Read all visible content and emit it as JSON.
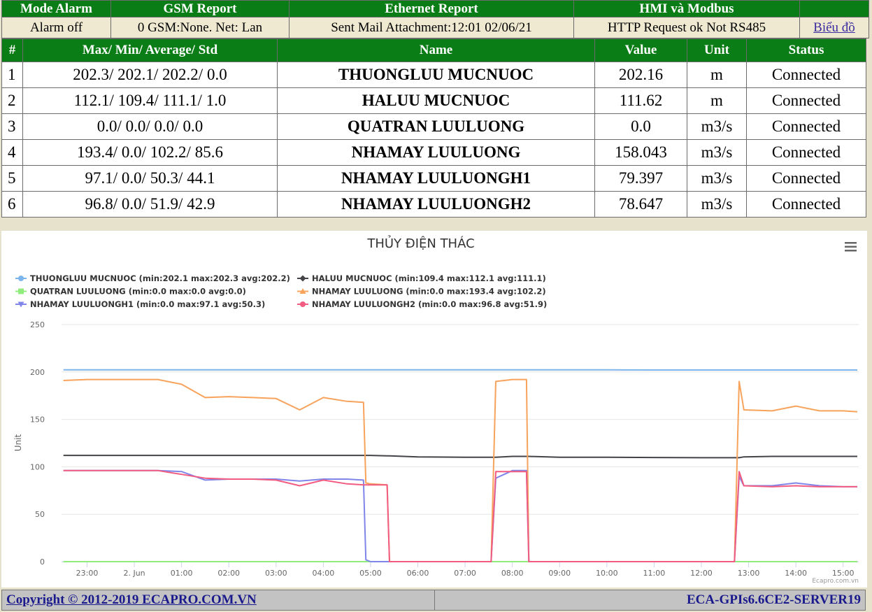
{
  "status": {
    "headers": [
      "Mode Alarm",
      "GSM Report",
      "Ethernet Report",
      "HMI và Modbus"
    ],
    "values": [
      "Alarm off",
      "0 GSM:None. Net: Lan",
      "Sent Mail Attachment:12:01 02/06/21",
      "HTTP Request ok Not RS485"
    ],
    "link": "Biểu đồ"
  },
  "table": {
    "header": [
      "#",
      "Max/ Min/ Average/ Std",
      "Name",
      "Value",
      "Unit",
      "Status"
    ],
    "rows": [
      [
        "1",
        "202.3/ 202.1/ 202.2/ 0.0",
        "THUONGLUU MUCNUOC",
        "202.16",
        "m",
        "Connected"
      ],
      [
        "2",
        "112.1/ 109.4/ 111.1/ 1.0",
        "HALUU MUCNUOC",
        "111.62",
        "m",
        "Connected"
      ],
      [
        "3",
        "0.0/ 0.0/ 0.0/ 0.0",
        "QUATRAN LUULUONG",
        "0.0",
        "m3/s",
        "Connected"
      ],
      [
        "4",
        "193.4/ 0.0/ 102.2/ 85.6",
        "NHAMAY LUULUONG",
        "158.043",
        "m3/s",
        "Connected"
      ],
      [
        "5",
        "97.1/ 0.0/ 50.3/ 44.1",
        "NHAMAY LUULUONGH1",
        "79.397",
        "m3/s",
        "Connected"
      ],
      [
        "6",
        "96.8/ 0.0/ 51.9/ 42.9",
        "NHAMAY LUULUONGH2",
        "78.647",
        "m3/s",
        "Connected"
      ]
    ]
  },
  "chart_data": {
    "type": "line",
    "title": "THỦY ĐIỆN THÁC",
    "y_label": "Unit",
    "credit": "Ecapro.com.vn",
    "x": [
      -1.5,
      -1,
      -0.5,
      0,
      0.5,
      1,
      1.5,
      2,
      2.5,
      3,
      3.5,
      4,
      4.5,
      4.85,
      4.9,
      5,
      5.35,
      5.4,
      6,
      7,
      7.55,
      7.65,
      8,
      8.3,
      8.35,
      9,
      10,
      11,
      12,
      12.7,
      12.8,
      12.9,
      13.5,
      14,
      14.5,
      15,
      15.3
    ],
    "xlim": [
      -1.54,
      15.33
    ],
    "xticks": [
      {
        "value": -1,
        "label": "23:00"
      },
      {
        "value": 0,
        "label": "2. Jun"
      },
      {
        "value": 1,
        "label": "01:00"
      },
      {
        "value": 2,
        "label": "02:00"
      },
      {
        "value": 3,
        "label": "03:00"
      },
      {
        "value": 4,
        "label": "04:00"
      },
      {
        "value": 5,
        "label": "05:00"
      },
      {
        "value": 6,
        "label": "06:00"
      },
      {
        "value": 7,
        "label": "07:00"
      },
      {
        "value": 8,
        "label": "08:00"
      },
      {
        "value": 9,
        "label": "09:00"
      },
      {
        "value": 10,
        "label": "10:00"
      },
      {
        "value": 11,
        "label": "11:00"
      },
      {
        "value": 12,
        "label": "12:00"
      },
      {
        "value": 13,
        "label": "13:00"
      },
      {
        "value": 14,
        "label": "14:00"
      },
      {
        "value": 15,
        "label": "15:00"
      }
    ],
    "ylim": [
      0,
      250
    ],
    "yticks": [
      0,
      50,
      100,
      150,
      200,
      250
    ],
    "grid": true,
    "series": [
      {
        "name": "THUONGLUU MUCNUOC (min:202.1 max:202.3 avg:202.2)",
        "color": "#7cb5ec",
        "marker": "circle",
        "values": [
          202.3,
          202.3,
          202.3,
          202.3,
          202.3,
          202.3,
          202.3,
          202.3,
          202.3,
          202.3,
          202.3,
          202.2,
          202.2,
          202.2,
          202.2,
          202.2,
          202.2,
          202.2,
          202.2,
          202.2,
          202.2,
          202.2,
          202.2,
          202.2,
          202.2,
          202.2,
          202.2,
          202.1,
          202.1,
          202.1,
          202.1,
          202.1,
          202.1,
          202.1,
          202.1,
          202.1,
          202.1
        ]
      },
      {
        "name": "HALUU MUCNUOC (min:109.4 max:112.1 avg:111.1)",
        "color": "#434348",
        "marker": "diamond",
        "values": [
          112,
          112,
          112,
          112,
          112,
          112,
          112,
          112,
          112,
          112,
          112,
          112,
          112,
          112,
          112,
          112,
          111.5,
          111.5,
          110.5,
          110,
          110,
          110,
          111,
          111,
          111,
          110,
          110,
          109.8,
          109.6,
          109.6,
          109.6,
          110.5,
          111,
          111,
          111,
          111,
          111
        ]
      },
      {
        "name": "QUATRAN LUULUONG (min:0.0 max:0.0 avg:0.0)",
        "color": "#90ed7d",
        "marker": "square",
        "values": [
          0,
          0,
          0,
          0,
          0,
          0,
          0,
          0,
          0,
          0,
          0,
          0,
          0,
          0,
          0,
          0,
          0,
          0,
          0,
          0,
          0,
          0,
          0,
          0,
          0,
          0,
          0,
          0,
          0,
          0,
          0,
          0,
          0,
          0,
          0,
          0,
          0
        ]
      },
      {
        "name": "NHAMAY LUULUONG (min:0.0 max:193.4 avg:102.2)",
        "color": "#f7a35c",
        "marker": "triangle",
        "values": [
          191,
          192,
          192,
          192,
          192,
          187,
          173,
          174,
          173,
          172,
          160,
          173,
          169,
          168,
          83,
          82,
          81,
          0,
          0,
          0,
          0,
          190,
          192,
          192,
          0,
          0,
          0,
          0,
          0,
          0,
          190,
          160,
          159,
          164,
          159,
          159,
          158
        ]
      },
      {
        "name": "NHAMAY LUULUONGH1 (min:0.0 max:97.1 avg:50.3)",
        "color": "#8085e9",
        "marker": "triangle-down",
        "values": [
          96,
          96,
          96,
          96,
          96,
          95,
          86,
          87,
          87,
          87,
          85,
          87,
          87,
          86,
          2,
          0,
          0,
          0,
          0,
          0,
          0,
          88,
          96,
          96,
          0,
          0,
          0,
          0,
          0,
          0,
          90,
          80,
          80,
          83,
          80,
          79,
          79
        ]
      },
      {
        "name": "NHAMAY LUULUONGH2 (min:0.0 max:96.8 avg:51.9)",
        "color": "#f15c80",
        "marker": "circle",
        "values": [
          96,
          96,
          96,
          96,
          96,
          92,
          88,
          87,
          87,
          86,
          80,
          86,
          82,
          81,
          81,
          81,
          81,
          0,
          0,
          0,
          0,
          95,
          95,
          95,
          0,
          0,
          0,
          0,
          0,
          0,
          95,
          80,
          79,
          80,
          79,
          79,
          79
        ]
      }
    ]
  },
  "footer": {
    "copyright": "Copyright © 2012-2019 ECAPRO.COM.VN",
    "server": "ECA-GPIs6.6CE2-SERVER19"
  }
}
